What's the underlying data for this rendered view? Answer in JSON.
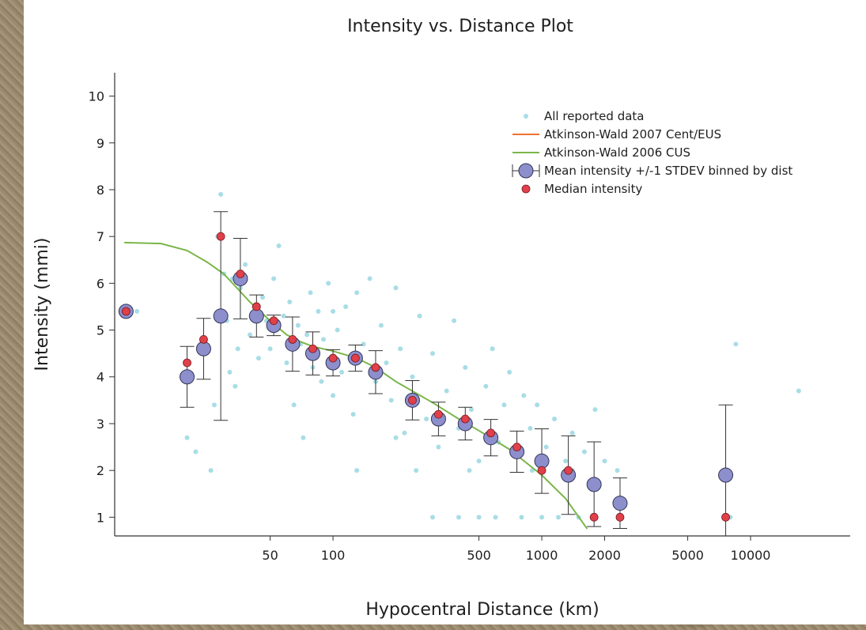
{
  "chart_data": {
    "type": "scatter",
    "title": "Intensity vs. Distance Plot",
    "xlabel": "Hypocentral Distance (km)",
    "ylabel": "Intensity (mmi)",
    "x_scale": "log",
    "xlim": [
      9,
      30000
    ],
    "ylim": [
      0.6,
      10.5
    ],
    "xticks": [
      50,
      100,
      500,
      1000,
      2000,
      5000,
      10000
    ],
    "xtick_labels": [
      "50",
      "100",
      "500",
      "1000",
      "2000",
      "5000",
      "10000"
    ],
    "yticks": [
      1,
      2,
      3,
      4,
      5,
      6,
      7,
      8,
      9,
      10
    ],
    "ytick_labels": [
      "1",
      "2",
      "3",
      "4",
      "5",
      "6",
      "7",
      "8",
      "9",
      "10"
    ],
    "grid": false,
    "legend_position": "top-right",
    "colors": {
      "reported": "#a8dde6",
      "cent_eus": "#f07030",
      "cus": "#7ab648",
      "mean_fill": "#8c8fcc",
      "mean_stroke": "#333355",
      "median": "#e0404a",
      "errorbar": "#333333"
    },
    "legend": [
      {
        "label": "All reported data",
        "marker": "dot-cyan"
      },
      {
        "label": "Atkinson-Wald 2007 Cent/EUS",
        "marker": "line-orange"
      },
      {
        "label": "Atkinson-Wald 2006 CUS",
        "marker": "line-green"
      },
      {
        "label": "Mean intensity +/-1 STDEV binned by dist",
        "marker": "circle-errorbar"
      },
      {
        "label": "Median intensity",
        "marker": "dot-red"
      }
    ],
    "series": [
      {
        "name": "All reported data",
        "kind": "scatter",
        "points": [
          [
            10.2,
            5.4
          ],
          [
            11.5,
            5.4
          ],
          [
            20,
            2.7
          ],
          [
            22,
            2.4
          ],
          [
            26,
            2
          ],
          [
            27,
            3.4
          ],
          [
            28,
            7
          ],
          [
            29,
            7.9
          ],
          [
            30,
            6.2
          ],
          [
            31,
            5.2
          ],
          [
            32,
            4.1
          ],
          [
            33,
            6.1
          ],
          [
            34,
            3.8
          ],
          [
            35,
            4.6
          ],
          [
            36,
            5.9
          ],
          [
            38,
            6.4
          ],
          [
            40,
            4.9
          ],
          [
            42,
            5.5
          ],
          [
            44,
            4.4
          ],
          [
            46,
            5.7
          ],
          [
            48,
            5.2
          ],
          [
            50,
            4.6
          ],
          [
            52,
            6.1
          ],
          [
            55,
            6.8
          ],
          [
            58,
            5.3
          ],
          [
            60,
            4.3
          ],
          [
            62,
            5.6
          ],
          [
            65,
            3.4
          ],
          [
            68,
            5.1
          ],
          [
            70,
            4.7
          ],
          [
            72,
            2.7
          ],
          [
            75,
            4.9
          ],
          [
            78,
            5.8
          ],
          [
            80,
            4.2
          ],
          [
            85,
            5.4
          ],
          [
            88,
            3.9
          ],
          [
            90,
            4.8
          ],
          [
            95,
            6
          ],
          [
            100,
            3.6
          ],
          [
            105,
            5
          ],
          [
            110,
            4.1
          ],
          [
            115,
            5.5
          ],
          [
            120,
            4.4
          ],
          [
            125,
            3.2
          ],
          [
            130,
            5.8
          ],
          [
            140,
            4.7
          ],
          [
            150,
            6.1
          ],
          [
            160,
            3.9
          ],
          [
            170,
            5.1
          ],
          [
            180,
            4.3
          ],
          [
            190,
            3.5
          ],
          [
            200,
            5.9
          ],
          [
            210,
            4.6
          ],
          [
            220,
            2.8
          ],
          [
            240,
            4
          ],
          [
            260,
            5.3
          ],
          [
            280,
            3.1
          ],
          [
            300,
            4.5
          ],
          [
            320,
            2.5
          ],
          [
            350,
            3.7
          ],
          [
            380,
            5.2
          ],
          [
            400,
            2.9
          ],
          [
            430,
            4.2
          ],
          [
            460,
            3.3
          ],
          [
            500,
            2.2
          ],
          [
            540,
            3.8
          ],
          [
            580,
            4.6
          ],
          [
            620,
            2.6
          ],
          [
            660,
            3.4
          ],
          [
            700,
            4.1
          ],
          [
            760,
            2.3
          ],
          [
            820,
            3.6
          ],
          [
            880,
            2.9
          ],
          [
            950,
            3.4
          ],
          [
            1050,
            2.5
          ],
          [
            1150,
            3.1
          ],
          [
            1300,
            2.2
          ],
          [
            1400,
            2.8
          ],
          [
            1600,
            2.4
          ],
          [
            1800,
            3.3
          ],
          [
            2000,
            2.2
          ],
          [
            2300,
            2
          ],
          [
            300,
            1
          ],
          [
            400,
            1
          ],
          [
            500,
            1
          ],
          [
            600,
            1
          ],
          [
            800,
            1
          ],
          [
            1000,
            1
          ],
          [
            1200,
            1
          ],
          [
            1500,
            1
          ],
          [
            8000,
            1
          ],
          [
            8500,
            4.7
          ],
          [
            17000,
            3.7
          ],
          [
            130,
            2
          ],
          [
            250,
            2
          ],
          [
            450,
            2
          ],
          [
            900,
            2
          ],
          [
            1400,
            2
          ],
          [
            100,
            5.4
          ],
          [
            200,
            2.7
          ]
        ]
      },
      {
        "name": "Atkinson-Wald 2006 CUS",
        "kind": "line",
        "points": [
          [
            10,
            6.87
          ],
          [
            15,
            6.85
          ],
          [
            20,
            6.7
          ],
          [
            25,
            6.45
          ],
          [
            30,
            6.2
          ],
          [
            40,
            5.6
          ],
          [
            50,
            5.2
          ],
          [
            60,
            4.9
          ],
          [
            70,
            4.75
          ],
          [
            80,
            4.65
          ],
          [
            100,
            4.55
          ],
          [
            130,
            4.4
          ],
          [
            160,
            4.2
          ],
          [
            200,
            3.9
          ],
          [
            300,
            3.45
          ],
          [
            400,
            3.1
          ],
          [
            500,
            2.85
          ],
          [
            700,
            2.45
          ],
          [
            1000,
            1.9
          ],
          [
            1300,
            1.4
          ],
          [
            1650,
            0.75
          ]
        ]
      },
      {
        "name": "Mean intensity +/-1 STDEV binned by dist",
        "kind": "errorbar",
        "points": [
          {
            "x": 10.2,
            "y": 5.4,
            "lo": 5.4,
            "hi": 5.4
          },
          {
            "x": 20,
            "y": 4,
            "lo": 3.35,
            "hi": 4.65
          },
          {
            "x": 24,
            "y": 4.6,
            "lo": 3.95,
            "hi": 5.25
          },
          {
            "x": 29,
            "y": 5.3,
            "lo": 3.07,
            "hi": 7.53
          },
          {
            "x": 36,
            "y": 6.1,
            "lo": 5.24,
            "hi": 6.96
          },
          {
            "x": 43,
            "y": 5.3,
            "lo": 4.85,
            "hi": 5.75
          },
          {
            "x": 52,
            "y": 5.1,
            "lo": 4.88,
            "hi": 5.32
          },
          {
            "x": 64,
            "y": 4.7,
            "lo": 4.12,
            "hi": 5.28
          },
          {
            "x": 80,
            "y": 4.5,
            "lo": 4.04,
            "hi": 4.96
          },
          {
            "x": 100,
            "y": 4.3,
            "lo": 4.02,
            "hi": 4.58
          },
          {
            "x": 128,
            "y": 4.4,
            "lo": 4.12,
            "hi": 4.68
          },
          {
            "x": 160,
            "y": 4.1,
            "lo": 3.64,
            "hi": 4.56
          },
          {
            "x": 240,
            "y": 3.5,
            "lo": 3.08,
            "hi": 3.92
          },
          {
            "x": 320,
            "y": 3.1,
            "lo": 2.74,
            "hi": 3.46
          },
          {
            "x": 430,
            "y": 3,
            "lo": 2.65,
            "hi": 3.35
          },
          {
            "x": 570,
            "y": 2.7,
            "lo": 2.31,
            "hi": 3.09
          },
          {
            "x": 760,
            "y": 2.4,
            "lo": 1.96,
            "hi": 2.84
          },
          {
            "x": 1000,
            "y": 2.2,
            "lo": 1.51,
            "hi": 2.89
          },
          {
            "x": 1340,
            "y": 1.9,
            "lo": 1.06,
            "hi": 2.74
          },
          {
            "x": 1780,
            "y": 1.7,
            "lo": 0.8,
            "hi": 2.61
          },
          {
            "x": 2370,
            "y": 1.3,
            "lo": 0.76,
            "hi": 1.84
          },
          {
            "x": 7600,
            "y": 1.9,
            "lo": 0.6,
            "hi": 3.4
          }
        ]
      },
      {
        "name": "Median intensity",
        "kind": "scatter",
        "points": [
          [
            10.2,
            5.4
          ],
          [
            20,
            4.3
          ],
          [
            24,
            4.8
          ],
          [
            29,
            7
          ],
          [
            36,
            6.2
          ],
          [
            43,
            5.5
          ],
          [
            52,
            5.2
          ],
          [
            64,
            4.8
          ],
          [
            80,
            4.6
          ],
          [
            100,
            4.4
          ],
          [
            128,
            4.4
          ],
          [
            160,
            4.2
          ],
          [
            240,
            3.5
          ],
          [
            320,
            3.2
          ],
          [
            430,
            3.1
          ],
          [
            570,
            2.8
          ],
          [
            760,
            2.5
          ],
          [
            1000,
            2
          ],
          [
            1340,
            2
          ],
          [
            1780,
            1
          ],
          [
            2370,
            1
          ],
          [
            7600,
            1
          ]
        ]
      }
    ]
  }
}
